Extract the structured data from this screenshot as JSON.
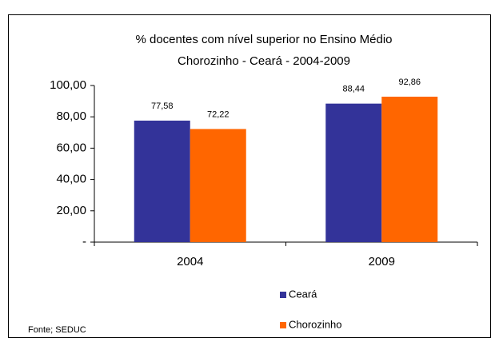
{
  "chart_data": {
    "type": "bar",
    "title": "% docentes com nível  superior no Ensino Médio",
    "subtitle": "Chorozinho -  Ceará - 2004-2009",
    "categories": [
      "2004",
      "2009"
    ],
    "series": [
      {
        "name": "Ceará",
        "color": "#333399",
        "values": [
          77.58,
          88.44
        ],
        "value_labels": [
          "77,58",
          "88,44"
        ]
      },
      {
        "name": "Chorozinho",
        "color": "#ff6600",
        "values": [
          72.22,
          92.86
        ],
        "value_labels": [
          "72,22",
          "92,86"
        ]
      }
    ],
    "ylim": [
      0,
      100
    ],
    "yticks": [
      {
        "value": 0,
        "label": "-"
      },
      {
        "value": 20,
        "label": "20,00"
      },
      {
        "value": 40,
        "label": "40,00"
      },
      {
        "value": 60,
        "label": "60,00"
      },
      {
        "value": 80,
        "label": "80,00"
      },
      {
        "value": 100,
        "label": "100,00"
      }
    ],
    "grid": false,
    "legend": "bottom",
    "source": "Fonte; SEDUC"
  }
}
